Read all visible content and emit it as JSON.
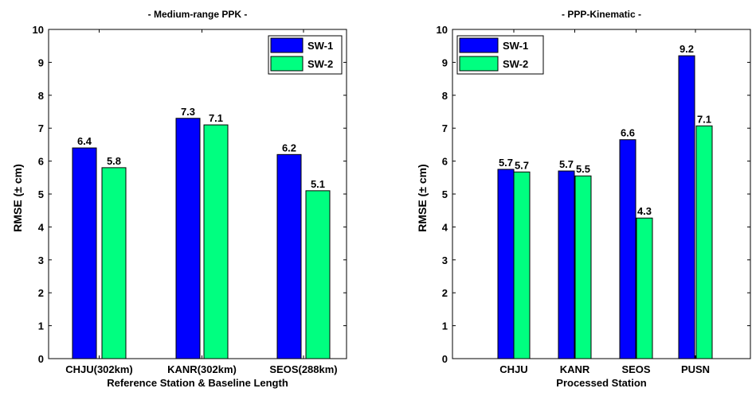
{
  "chart_data": [
    {
      "type": "bar",
      "title": "- Medium-range PPK -",
      "xlabel": "Reference Station & Baseline Length",
      "ylabel": "RMSE (± cm)",
      "categories": [
        "CHJU(302km)",
        "KANR(302km)",
        "SEOS(288km)"
      ],
      "series": [
        {
          "name": "SW-1",
          "values": [
            6.4,
            7.3,
            6.2
          ],
          "labels": [
            "6.4",
            "7.3",
            "6.2"
          ],
          "color": "#0000ff"
        },
        {
          "name": "SW-2",
          "values": [
            5.8,
            7.1,
            5.1
          ],
          "labels": [
            "5.8",
            "7.1",
            "5.1"
          ],
          "color": "#00ff80"
        }
      ],
      "ylim": [
        0,
        10
      ],
      "yticks": [
        "0",
        "1",
        "2",
        "3",
        "4",
        "5",
        "6",
        "7",
        "8",
        "9",
        "10"
      ],
      "grid": false,
      "legend": "top-right"
    },
    {
      "type": "bar",
      "title": "- PPP-Kinematic -",
      "xlabel": "Processed Station",
      "ylabel": "RMSE (± cm)",
      "categories": [
        "CHJU",
        "KANR",
        "SEOS",
        "PUSN"
      ],
      "series": [
        {
          "name": "SW-1",
          "values": [
            5.75,
            5.7,
            6.65,
            9.2
          ],
          "labels": [
            "5.7",
            "5.7",
            "6.6",
            "9.2"
          ],
          "color": "#0000ff"
        },
        {
          "name": "SW-2",
          "values": [
            5.67,
            5.55,
            4.27,
            7.07
          ],
          "labels": [
            "5.7",
            "5.5",
            "4.3",
            "7.1"
          ],
          "color": "#00ff80"
        }
      ],
      "ylim": [
        0,
        10
      ],
      "yticks": [
        "0",
        "1",
        "2",
        "3",
        "4",
        "5",
        "6",
        "7",
        "8",
        "9",
        "10"
      ],
      "grid": false,
      "legend": "top-left"
    }
  ]
}
